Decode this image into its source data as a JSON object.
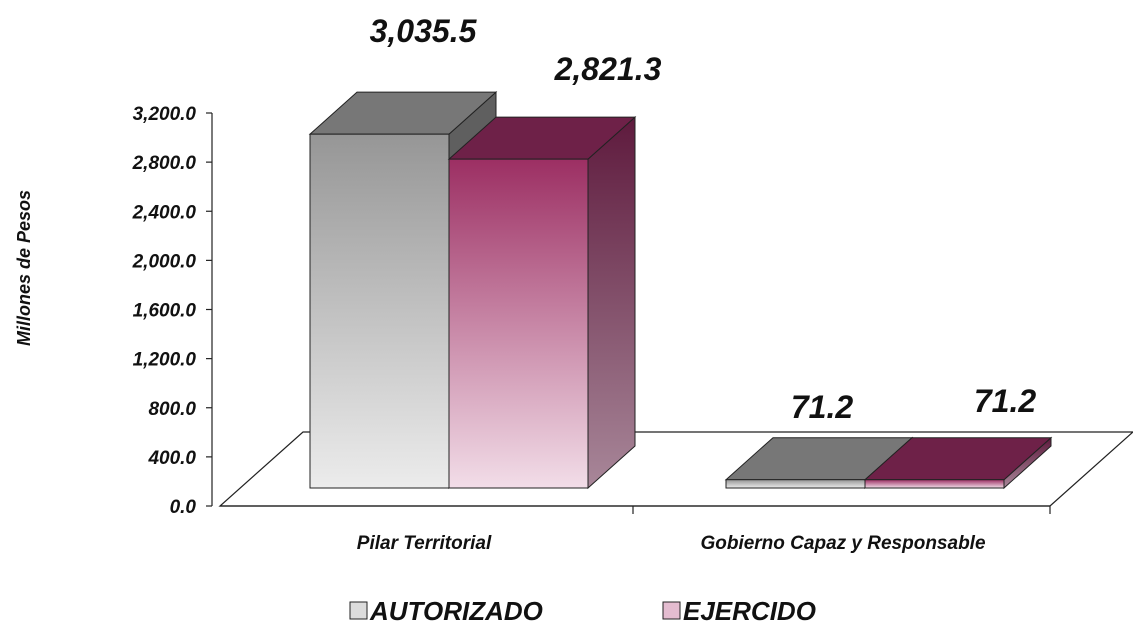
{
  "chart_data": {
    "type": "bar",
    "style": "3d-clustered-column",
    "categories": [
      "Pilar Territorial",
      "Gobierno Capaz y Responsable"
    ],
    "series": [
      {
        "name": "AUTORIZADO",
        "values": [
          3035.5,
          71.2
        ],
        "labels": [
          "3,035.5",
          "71.2"
        ],
        "color": "#8a8a8a"
      },
      {
        "name": "EJERCIDO",
        "values": [
          2821.3,
          71.2
        ],
        "labels": [
          "2,821.3",
          "71.2"
        ],
        "color": "#7a2350"
      }
    ],
    "title": "",
    "ylabel": "Millones de Pesos",
    "ylim": [
      0,
      3200
    ],
    "yticks": [
      "0.0",
      "400.0",
      "800.0",
      "1,200.0",
      "1,600.0",
      "2,000.0",
      "2,400.0",
      "2,800.0",
      "3,200.0"
    ],
    "grid": false,
    "legend_position": "bottom"
  }
}
